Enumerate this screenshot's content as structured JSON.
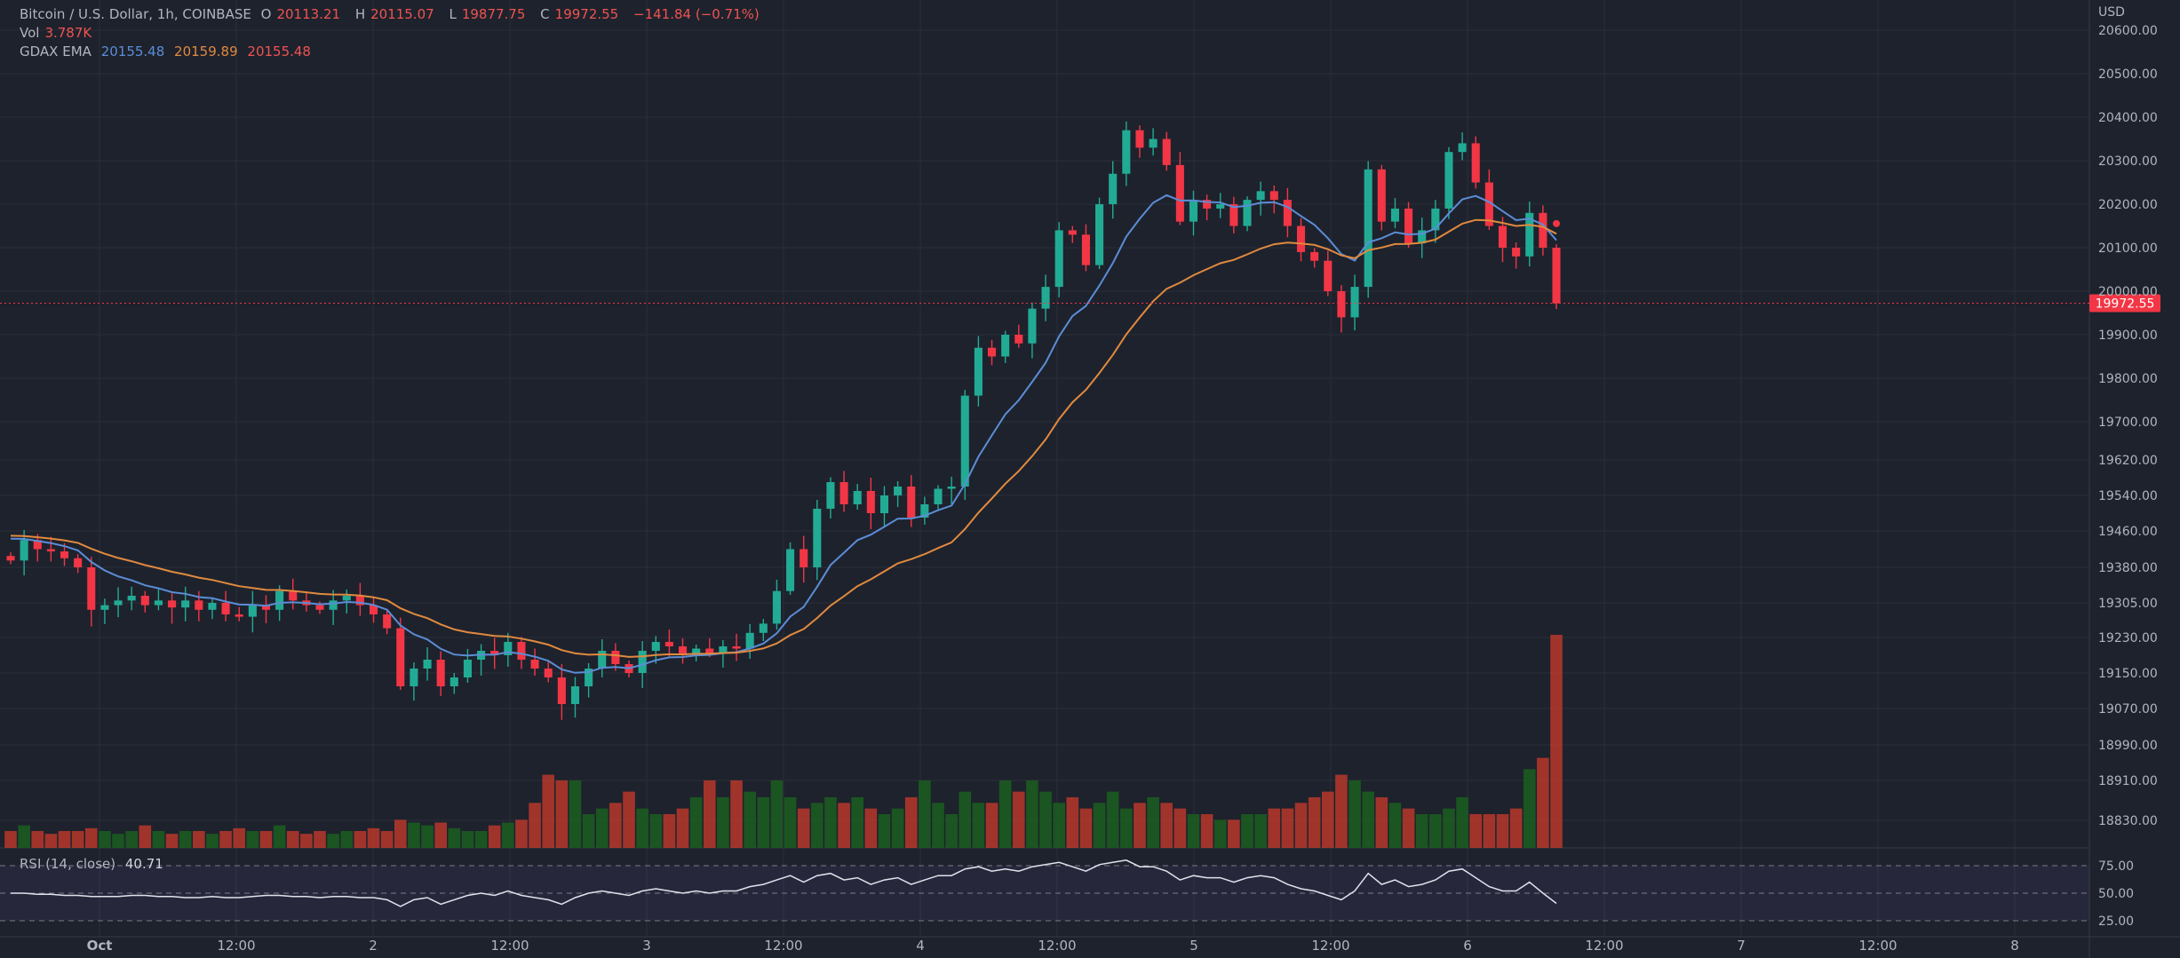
{
  "header": {
    "symbol": "Bitcoin / U.S. Dollar, 1h, COINBASE",
    "o_label": "O",
    "o_value": "20113.21",
    "h_label": "H",
    "h_value": "20115.07",
    "l_label": "L",
    "l_value": "19877.75",
    "c_label": "C",
    "c_value": "19972.55",
    "change": "−141.84 (−0.71%)",
    "vol_label": "Vol",
    "vol_value": "3.787K",
    "ema_label": "GDAX EMA",
    "ema_values": [
      "20155.48",
      "20159.89",
      "20155.48"
    ]
  },
  "rsi": {
    "label": "RSI (14, close)",
    "value": "40.71"
  },
  "price_axis": {
    "currency": "USD",
    "ticks": [
      "20600.00",
      "20500.00",
      "20400.00",
      "20300.00",
      "20200.00",
      "20100.00",
      "20000.00",
      "19900.00",
      "19800.00",
      "19700.00",
      "19620.00",
      "19540.00",
      "19460.00",
      "19380.00",
      "19305.00",
      "19230.00",
      "19150.00",
      "19070.00",
      "18990.00",
      "18910.00",
      "18830.00"
    ],
    "last_price": "19972.55"
  },
  "rsi_axis": {
    "ticks": [
      "75.00",
      "50.00",
      "25.00"
    ]
  },
  "time_axis": {
    "ticks": [
      "Oct",
      "12:00",
      "2",
      "12:00",
      "3",
      "12:00",
      "4",
      "12:00",
      "5",
      "12:00",
      "6",
      "12:00",
      "7",
      "12:00",
      "8"
    ]
  },
  "colors": {
    "background": "#1e222d",
    "up": "#26a69a",
    "down": "#ef5350",
    "ema_fast": "#5b8dd6",
    "ema_slow": "#e08a3e",
    "rsi_line": "#ffffff",
    "text": "#b2b5be"
  },
  "chart_data": {
    "type": "candlestick",
    "title": "Bitcoin / U.S. Dollar, 1h, COINBASE",
    "ylabel": "USD",
    "ylim": [
      18800,
      20650
    ],
    "candles_close": [
      19395,
      19440,
      19420,
      19415,
      19400,
      19380,
      19290,
      19300,
      19310,
      19320,
      19300,
      19310,
      19295,
      19310,
      19290,
      19305,
      19280,
      19275,
      19300,
      19290,
      19330,
      19310,
      19300,
      19290,
      19310,
      19320,
      19300,
      19280,
      19250,
      19120,
      19160,
      19180,
      19120,
      19140,
      19180,
      19200,
      19190,
      19220,
      19180,
      19160,
      19140,
      19080,
      19120,
      19160,
      19200,
      19170,
      19150,
      19200,
      19220,
      19210,
      19190,
      19205,
      19195,
      19210,
      19205,
      19240,
      19260,
      19330,
      19420,
      19380,
      19510,
      19570,
      19520,
      19550,
      19500,
      19540,
      19560,
      19490,
      19520,
      19555,
      19560,
      19760,
      19870,
      19850,
      19900,
      19880,
      19960,
      20010,
      20140,
      20130,
      20060,
      20200,
      20270,
      20370,
      20330,
      20350,
      20290,
      20160,
      20210,
      20190,
      20200,
      20150,
      20210,
      20230,
      20210,
      20150,
      20090,
      20070,
      20000,
      19940,
      20010,
      20280,
      20160,
      20190,
      20110,
      20140,
      20190,
      20320,
      20340,
      20250,
      20150,
      20100,
      20080,
      20180,
      20100,
      19972
    ],
    "volume": [
      0.3,
      0.4,
      0.3,
      0.25,
      0.3,
      0.3,
      0.35,
      0.3,
      0.25,
      0.3,
      0.4,
      0.3,
      0.25,
      0.3,
      0.3,
      0.25,
      0.3,
      0.35,
      0.3,
      0.3,
      0.4,
      0.3,
      0.25,
      0.3,
      0.25,
      0.3,
      0.3,
      0.35,
      0.3,
      0.5,
      0.45,
      0.4,
      0.45,
      0.35,
      0.3,
      0.3,
      0.4,
      0.45,
      0.5,
      0.8,
      1.3,
      1.2,
      1.2,
      0.6,
      0.7,
      0.8,
      1.0,
      0.7,
      0.6,
      0.6,
      0.7,
      0.9,
      1.2,
      0.9,
      1.2,
      1.0,
      0.9,
      1.2,
      0.9,
      0.7,
      0.8,
      0.9,
      0.8,
      0.9,
      0.7,
      0.6,
      0.7,
      0.9,
      1.2,
      0.8,
      0.6,
      1.0,
      0.8,
      0.8,
      1.2,
      1.0,
      1.2,
      1.0,
      0.8,
      0.9,
      0.7,
      0.8,
      1.0,
      0.7,
      0.8,
      0.9,
      0.8,
      0.7,
      0.6,
      0.6,
      0.5,
      0.5,
      0.6,
      0.6,
      0.7,
      0.7,
      0.8,
      0.9,
      1.0,
      1.3,
      1.2,
      1.0,
      0.9,
      0.8,
      0.7,
      0.6,
      0.6,
      0.7,
      0.9,
      0.6,
      0.6,
      0.6,
      0.7,
      1.4,
      1.6,
      3.787
    ],
    "rsi": [
      50,
      50,
      49,
      49,
      48,
      48,
      47,
      47,
      47,
      48,
      48,
      47,
      47,
      46,
      46,
      47,
      46,
      46,
      47,
      48,
      48,
      47,
      47,
      46,
      47,
      47,
      46,
      46,
      44,
      38,
      44,
      46,
      40,
      44,
      48,
      50,
      48,
      52,
      48,
      46,
      44,
      40,
      46,
      50,
      52,
      50,
      48,
      52,
      54,
      52,
      50,
      52,
      50,
      52,
      52,
      56,
      58,
      62,
      66,
      60,
      66,
      68,
      62,
      64,
      58,
      62,
      64,
      58,
      62,
      66,
      66,
      72,
      74,
      70,
      72,
      70,
      74,
      76,
      78,
      74,
      70,
      76,
      78,
      80,
      74,
      74,
      70,
      62,
      66,
      64,
      64,
      60,
      64,
      66,
      64,
      58,
      54,
      52,
      48,
      44,
      52,
      68,
      58,
      62,
      56,
      58,
      62,
      70,
      72,
      64,
      56,
      52,
      52,
      60,
      50,
      40.71
    ],
    "ema_fast_end": 20155.48,
    "ema_slow_end": 20159.89
  }
}
